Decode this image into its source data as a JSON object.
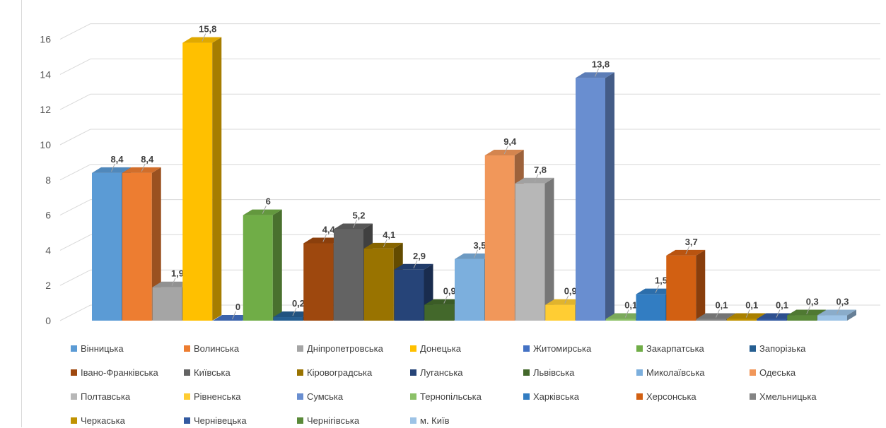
{
  "chart_data": {
    "type": "bar",
    "title": "",
    "xlabel": "",
    "ylabel": "",
    "ylim": [
      0,
      16
    ],
    "yticks": [
      0,
      2,
      4,
      6,
      8,
      10,
      12,
      14,
      16
    ],
    "grid": true,
    "legend_position": "bottom",
    "categories": [
      "Вінницька",
      "Волинська",
      "Дніпропетровська",
      "Донецька",
      "Житомирська",
      "Закарпатська",
      "Запорізька",
      "Івано-Франківська",
      "Київська",
      "Кіровоградська",
      "Луганська",
      "Львівська",
      "Миколаївська",
      "Одеська",
      "Полтавська",
      "Рівненська",
      "Сумська",
      "Тернопільська",
      "Харківська",
      "Херсонська",
      "Хмельницька",
      "Черкаська",
      "Чернівецька",
      "Чернігівська",
      "м. Київ"
    ],
    "values": [
      8.4,
      8.4,
      1.9,
      15.8,
      0,
      6,
      0.2,
      4.4,
      5.2,
      4.1,
      2.9,
      0.9,
      3.5,
      9.4,
      7.8,
      0.9,
      13.8,
      0.1,
      1.5,
      3.7,
      0.1,
      0.1,
      0.1,
      0.3,
      0.3
    ],
    "data_labels": [
      "8,4",
      "8,4",
      "1,9",
      "15,8",
      "0",
      "6",
      "0,2",
      "4,4",
      "5,2",
      "4,1",
      "2,9",
      "0,9",
      "3,5",
      "9,4",
      "7,8",
      "0,9",
      "13,8",
      "0,1",
      "1,5",
      "3,7",
      "0,1",
      "0,1",
      "0,1",
      "0,3",
      "0,3"
    ],
    "colors": [
      "#5b9bd5",
      "#ed7d31",
      "#a5a5a5",
      "#ffc000",
      "#4472c4",
      "#70ad47",
      "#255e91",
      "#9e480e",
      "#636363",
      "#997300",
      "#264478",
      "#43682b",
      "#7cafdd",
      "#f1975a",
      "#b7b7b7",
      "#ffcd33",
      "#698ed0",
      "#8cc168",
      "#327dc2",
      "#d26012",
      "#848484",
      "#c09200",
      "#335aa1",
      "#5a8a39",
      "#9dc3e6"
    ],
    "ytick_labels": [
      "0",
      "2",
      "4",
      "6",
      "8",
      "10",
      "12",
      "14",
      "16"
    ]
  }
}
